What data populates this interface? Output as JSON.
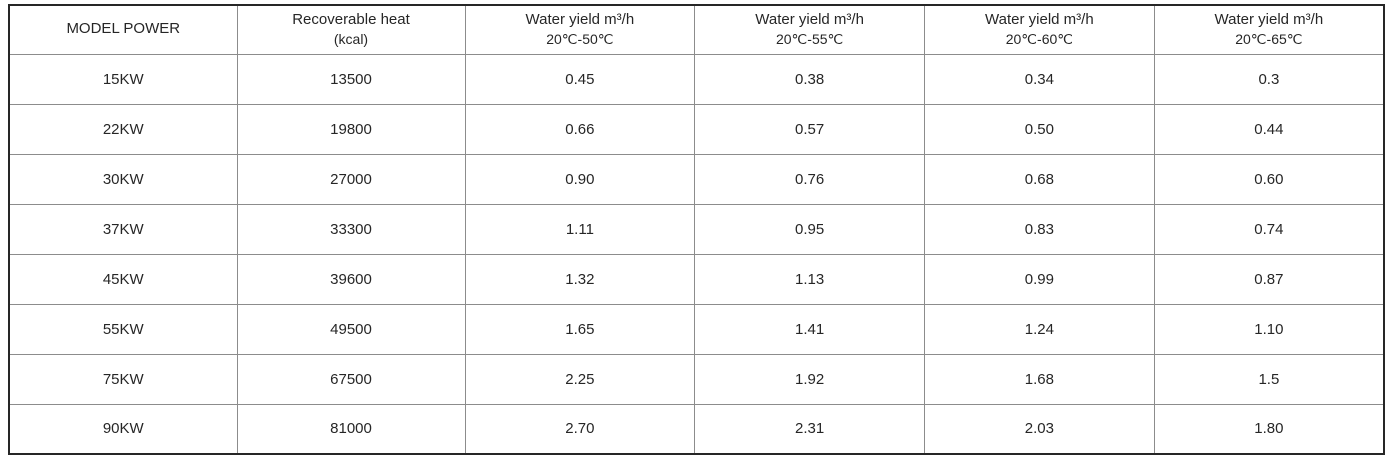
{
  "chart_data": {
    "type": "table",
    "title": "",
    "columns": [
      {
        "label": "MODEL POWER",
        "sublabel": ""
      },
      {
        "label": "Recoverable heat",
        "sublabel": "(kcal)"
      },
      {
        "label": "Water yield m³/h",
        "sublabel": "20℃-50℃"
      },
      {
        "label": "Water yield m³/h",
        "sublabel": "20℃-55℃"
      },
      {
        "label": "Water yield m³/h",
        "sublabel": "20℃-60℃"
      },
      {
        "label": "Water yield m³/h",
        "sublabel": "20℃-65℃"
      }
    ],
    "rows": [
      [
        "15KW",
        "13500",
        "0.45",
        "0.38",
        "0.34",
        "0.3"
      ],
      [
        "22KW",
        "19800",
        "0.66",
        "0.57",
        "0.50",
        "0.44"
      ],
      [
        "30KW",
        "27000",
        "0.90",
        "0.76",
        "0.68",
        "0.60"
      ],
      [
        "37KW",
        "33300",
        "1.11",
        "0.95",
        "0.83",
        "0.74"
      ],
      [
        "45KW",
        "39600",
        "1.32",
        "1.13",
        "0.99",
        "0.87"
      ],
      [
        "55KW",
        "49500",
        "1.65",
        "1.41",
        "1.24",
        "1.10"
      ],
      [
        "75KW",
        "67500",
        "2.25",
        "1.92",
        "1.68",
        "1.5"
      ],
      [
        "90KW",
        "81000",
        "2.70",
        "2.31",
        "2.03",
        "1.80"
      ]
    ]
  },
  "colors": {
    "outer_border": "#262626",
    "inner_border": "#8c8c8c",
    "text": "#262626",
    "background": "#ffffff"
  }
}
